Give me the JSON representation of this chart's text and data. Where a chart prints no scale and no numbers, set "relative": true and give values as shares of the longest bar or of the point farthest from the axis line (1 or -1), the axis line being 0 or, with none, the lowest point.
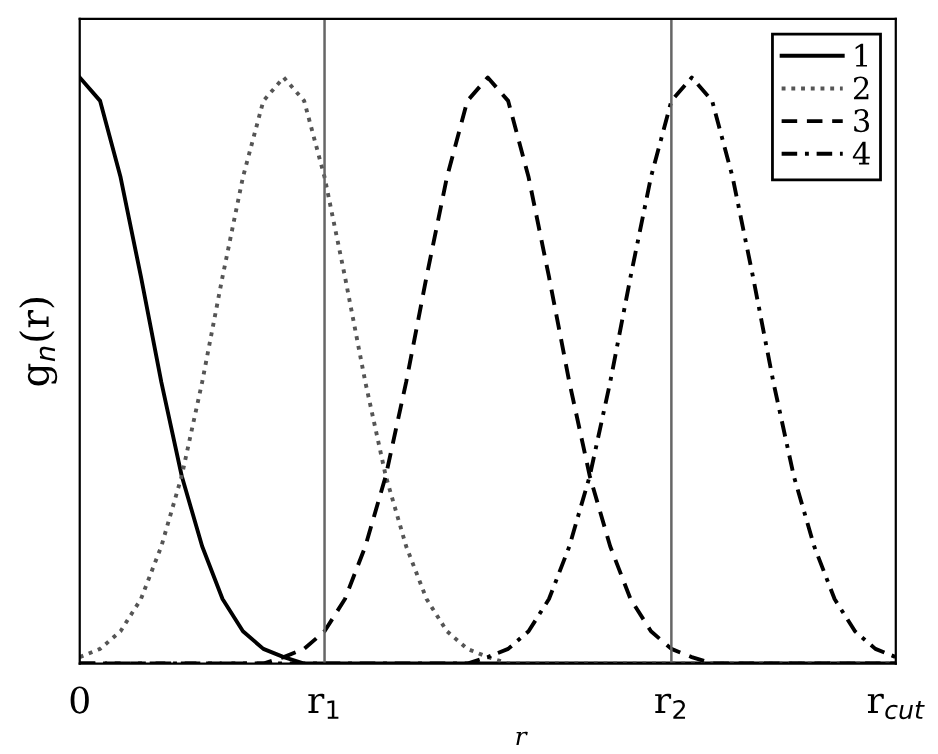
{
  "chart_data": {
    "type": "line",
    "relative": true,
    "xlabel": "r",
    "ylabel": "g$_{n}$(r)",
    "categories": [
      "0",
      null,
      null,
      null,
      null,
      null,
      null,
      null,
      null,
      null,
      null,
      null,
      "r$_{1}$",
      null,
      null,
      null,
      null,
      null,
      null,
      null,
      null,
      null,
      null,
      null,
      null,
      null,
      null,
      null,
      null,
      "r$_{2}$",
      null,
      null,
      null,
      null,
      null,
      null,
      null,
      null,
      null,
      null,
      "r$_{cut}$"
    ],
    "series": [
      {
        "name": "1",
        "color": "#000000",
        "line_style": "solid",
        "values": [
          1,
          0.96,
          0.83,
          0.66,
          0.48,
          0.32,
          0.2,
          0.11,
          0.055,
          0.025,
          0.011,
          0,
          0,
          0,
          0,
          0,
          0,
          0,
          0,
          0,
          0,
          0,
          0,
          0,
          0,
          0,
          0,
          0,
          0,
          0,
          0,
          0,
          0,
          0,
          0,
          0,
          0,
          0,
          0,
          0,
          0
        ]
      },
      {
        "name": "2",
        "color": "#555555",
        "line_style": "dotted",
        "values": [
          0.011,
          0.025,
          0.055,
          0.11,
          0.2,
          0.32,
          0.48,
          0.66,
          0.83,
          0.96,
          1,
          0.96,
          0.83,
          0.66,
          0.48,
          0.32,
          0.2,
          0.11,
          0.055,
          0.025,
          0.011,
          0,
          0,
          0,
          0,
          0,
          0,
          0,
          0,
          0,
          0,
          0,
          0,
          0,
          0,
          0,
          0,
          0,
          0,
          0,
          0
        ]
      },
      {
        "name": "3",
        "color": "#000000",
        "line_style": "dashed",
        "values": [
          0,
          0,
          0,
          0,
          0,
          0,
          0,
          0,
          0,
          0,
          0.011,
          0.025,
          0.055,
          0.11,
          0.2,
          0.32,
          0.48,
          0.66,
          0.83,
          0.96,
          1,
          0.96,
          0.83,
          0.66,
          0.48,
          0.32,
          0.2,
          0.11,
          0.055,
          0.025,
          0.011,
          0,
          0,
          0,
          0,
          0,
          0,
          0,
          0,
          0,
          0
        ]
      },
      {
        "name": "4",
        "color": "#000000",
        "line_style": "dashdot",
        "values": [
          0,
          0,
          0,
          0,
          0,
          0,
          0,
          0,
          0,
          0,
          0,
          0,
          0,
          0,
          0,
          0,
          0,
          0,
          0,
          0,
          0.011,
          0.025,
          0.055,
          0.11,
          0.2,
          0.32,
          0.48,
          0.66,
          0.83,
          0.96,
          1,
          0.96,
          0.83,
          0.66,
          0.48,
          0.32,
          0.2,
          0.11,
          0.055,
          0.025,
          0.011
        ]
      }
    ],
    "ref_lines": [
      {
        "axis": "x",
        "value": "r$_{1}$",
        "color": "#666666"
      },
      {
        "axis": "x",
        "value": "r$_{2}$",
        "color": "#666666"
      }
    ],
    "legend": "top right",
    "grid": false,
    "marker": "none"
  }
}
